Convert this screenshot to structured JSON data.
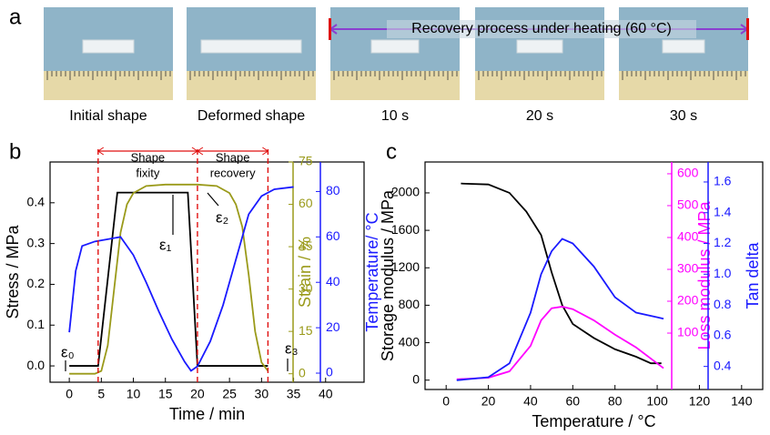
{
  "figure": {
    "panel_labels": [
      "a",
      "b",
      "c"
    ],
    "captions": [
      "Initial shape",
      "Deformed shape",
      "10 s",
      "20 s",
      "30 s"
    ],
    "annotation": "Recovery process under heating (60 °C)"
  },
  "chart_data": [
    {
      "type": "line",
      "xlabel": "Time / min",
      "xlim": [
        -3,
        46
      ],
      "xticks": [
        0,
        5,
        10,
        15,
        20,
        25,
        30,
        35,
        40
      ],
      "ylabel": "Stress / MPa",
      "ylim": [
        -0.04,
        0.5
      ],
      "yticks": [
        {
          "value": 0,
          "label": "0.0"
        },
        0.1,
        0.2,
        0.3,
        0.4
      ],
      "y2label": "Strain / %",
      "y2lim": [
        -3,
        75
      ],
      "y2ticks": [
        0,
        15,
        30,
        45,
        60,
        75
      ],
      "y2color": "#9a9a1a",
      "y3label": "Temperature/ °C",
      "y3lim": [
        -4,
        93
      ],
      "y3ticks": [
        0,
        20,
        40,
        60,
        80
      ],
      "y3color": "#1a1aff",
      "vlines": [
        4.5,
        20,
        31
      ],
      "phase_labels": [
        [
          "Shape",
          "fixity"
        ],
        [
          "Shape",
          "recovery"
        ]
      ],
      "annotations": [
        "ε₀",
        "ε₁",
        "ε₂",
        "ε₃"
      ],
      "series": [
        {
          "color": "#000000",
          "axis": "y",
          "x": [
            0,
            4.5,
            7.5,
            18.5,
            20,
            31
          ],
          "values": [
            0,
            0,
            0.425,
            0.425,
            0,
            0
          ]
        },
        {
          "color": "#9a9a1a",
          "axis": "y2",
          "x": [
            0,
            4,
            5,
            6,
            7,
            8,
            9,
            10,
            12,
            15,
            20,
            23,
            25,
            26,
            27,
            28,
            29,
            30,
            31
          ],
          "values": [
            0,
            0,
            1,
            10,
            30,
            50,
            60,
            64,
            66.5,
            67,
            67,
            66.5,
            64,
            60,
            52,
            35,
            15,
            4,
            1
          ]
        },
        {
          "color": "#1a1aff",
          "axis": "y3",
          "x": [
            0,
            1,
            2,
            4,
            6,
            8,
            10,
            12,
            14,
            16,
            18,
            19,
            20,
            22,
            24,
            26,
            28,
            30,
            32,
            35
          ],
          "values": [
            18,
            45,
            56,
            58,
            59,
            60,
            52,
            40,
            27,
            15,
            5,
            1,
            3,
            14,
            30,
            50,
            70,
            78,
            81,
            82
          ]
        }
      ]
    },
    {
      "type": "line",
      "xlabel": "Temperature / °C",
      "xlim": [
        -10,
        150
      ],
      "xticks": [
        0,
        20,
        40,
        60,
        80,
        100,
        120,
        140
      ],
      "ylabel": "Storage modulus / MPa",
      "ylim": [
        -100,
        2330
      ],
      "yticks": [
        0,
        400,
        800,
        1200,
        1600,
        2000
      ],
      "y2label": "Loss modulus / MPa",
      "y2lim": [
        -77,
        637
      ],
      "y2ticks": [
        100,
        200,
        300,
        400,
        500,
        600
      ],
      "y2color": "#ff00ff",
      "y3label": "Tan delta",
      "y3lim": [
        0.25,
        1.73
      ],
      "y3ticks": [
        0.4,
        0.6,
        0.8,
        {
          "value": 1,
          "label": "1.0"
        },
        1.2,
        1.4,
        1.6
      ],
      "y3color": "#1a1aff",
      "series": [
        {
          "color": "#000000",
          "axis": "y",
          "x": [
            7,
            20,
            30,
            38,
            45,
            50,
            55,
            60,
            70,
            80,
            90,
            97,
            102
          ],
          "values": [
            2100,
            2090,
            2000,
            1800,
            1550,
            1150,
            800,
            600,
            450,
            330,
            250,
            180,
            180
          ]
        },
        {
          "color": "#ff00ff",
          "axis": "y2",
          "x": [
            5,
            20,
            30,
            40,
            45,
            50,
            55,
            60,
            70,
            80,
            90,
            100,
            103
          ],
          "values": [
            -45,
            -40,
            -20,
            60,
            140,
            178,
            183,
            175,
            140,
            95,
            55,
            5,
            -10
          ]
        },
        {
          "color": "#1a1aff",
          "axis": "y3",
          "x": [
            5,
            20,
            30,
            40,
            45,
            50,
            55,
            60,
            70,
            80,
            90,
            100,
            103
          ],
          "values": [
            0.31,
            0.33,
            0.42,
            0.75,
            1.0,
            1.15,
            1.23,
            1.2,
            1.05,
            0.85,
            0.75,
            0.72,
            0.71
          ]
        }
      ]
    }
  ]
}
